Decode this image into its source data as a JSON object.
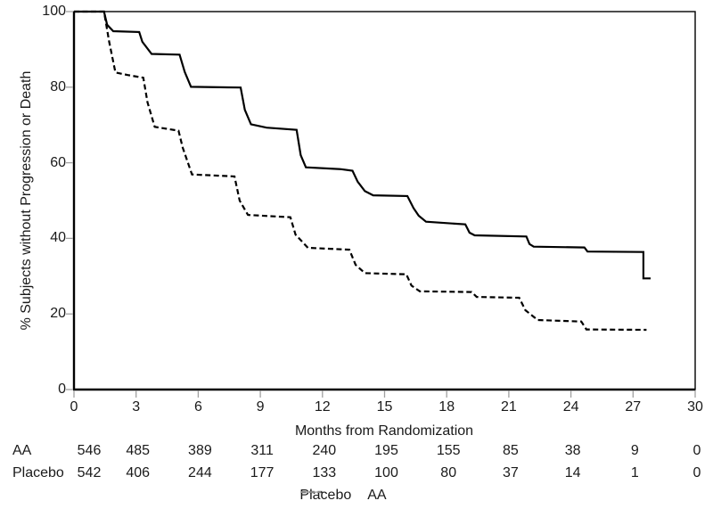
{
  "figure": {
    "background": "#ffffff",
    "colors": {
      "foreground": "#000000",
      "tick": "#a0a0a0",
      "frame": "#000000",
      "legend_aa_sample": "#b3b3b3"
    }
  },
  "chart_data": {
    "type": "line",
    "subtype": "kaplan-meier-step",
    "title": "",
    "xlabel": "Months from Randomization",
    "ylabel": "% Subjects without Progression or Death",
    "xlim": [
      0,
      30
    ],
    "ylim": [
      0,
      100
    ],
    "xticks": [
      0,
      3,
      6,
      9,
      12,
      15,
      18,
      21,
      24,
      27,
      30
    ],
    "yticks": [
      0,
      20,
      40,
      60,
      80,
      100
    ],
    "grid": false,
    "legend_position": "bottom-center",
    "series": [
      {
        "name": "AA",
        "style": "solid",
        "color": "#000000",
        "points": [
          [
            0,
            100
          ],
          [
            1.45,
            100
          ],
          [
            1.6,
            96.5
          ],
          [
            1.9,
            94.8
          ],
          [
            3.15,
            94.6
          ],
          [
            3.3,
            92
          ],
          [
            3.75,
            88.8
          ],
          [
            5.1,
            88.6
          ],
          [
            5.35,
            84
          ],
          [
            5.65,
            80.1
          ],
          [
            8.05,
            79.9
          ],
          [
            8.25,
            74
          ],
          [
            8.55,
            70.2
          ],
          [
            9.3,
            69.3
          ],
          [
            10.75,
            68.7
          ],
          [
            10.95,
            62
          ],
          [
            11.2,
            58.8
          ],
          [
            12.9,
            58.3
          ],
          [
            13.45,
            57.9
          ],
          [
            13.7,
            55
          ],
          [
            14.05,
            52.5
          ],
          [
            14.45,
            51.4
          ],
          [
            16.1,
            51.2
          ],
          [
            16.4,
            48
          ],
          [
            16.65,
            46.0
          ],
          [
            17.0,
            44.4
          ],
          [
            18.9,
            43.7
          ],
          [
            19.1,
            41.5
          ],
          [
            19.35,
            40.8
          ],
          [
            21.85,
            40.5
          ],
          [
            22.0,
            38.5
          ],
          [
            22.2,
            37.8
          ],
          [
            24.65,
            37.6
          ],
          [
            24.8,
            36.5
          ],
          [
            27.5,
            36.4
          ],
          [
            27.5,
            29.4
          ],
          [
            27.85,
            29.4
          ]
        ]
      },
      {
        "name": "Placebo",
        "style": "dashed",
        "color": "#000000",
        "points": [
          [
            0,
            100
          ],
          [
            1.45,
            100
          ],
          [
            1.7,
            92
          ],
          [
            2.0,
            83.9
          ],
          [
            2.6,
            83.2
          ],
          [
            3.35,
            82.5
          ],
          [
            3.55,
            76
          ],
          [
            3.9,
            69.5
          ],
          [
            5.05,
            68.5
          ],
          [
            5.25,
            64
          ],
          [
            5.7,
            56.9
          ],
          [
            7.75,
            56.4
          ],
          [
            8.0,
            50
          ],
          [
            8.4,
            46.2
          ],
          [
            10.45,
            45.6
          ],
          [
            10.7,
            41
          ],
          [
            11.3,
            37.5
          ],
          [
            13.3,
            37.0
          ],
          [
            13.6,
            33
          ],
          [
            14.05,
            30.8
          ],
          [
            16.05,
            30.5
          ],
          [
            16.3,
            27.5
          ],
          [
            16.7,
            26.0
          ],
          [
            19.2,
            25.8
          ],
          [
            19.45,
            24.5
          ],
          [
            21.5,
            24.3
          ],
          [
            21.8,
            21
          ],
          [
            22.4,
            18.4
          ],
          [
            24.5,
            18.0
          ],
          [
            24.75,
            15.9
          ],
          [
            27.65,
            15.8
          ]
        ]
      }
    ],
    "legend": [
      {
        "label": "Placebo",
        "sample": "dashed-black"
      },
      {
        "label": "AA",
        "sample": "solid-gray"
      }
    ],
    "risk_table": {
      "times": [
        0,
        3,
        6,
        9,
        12,
        15,
        18,
        21,
        24,
        27,
        30
      ],
      "rows": [
        {
          "label": "AA",
          "values": [
            546,
            485,
            389,
            311,
            240,
            195,
            155,
            85,
            38,
            9,
            0
          ]
        },
        {
          "label": "Placebo",
          "values": [
            542,
            406,
            244,
            177,
            133,
            100,
            80,
            37,
            14,
            1,
            0
          ]
        }
      ]
    }
  }
}
